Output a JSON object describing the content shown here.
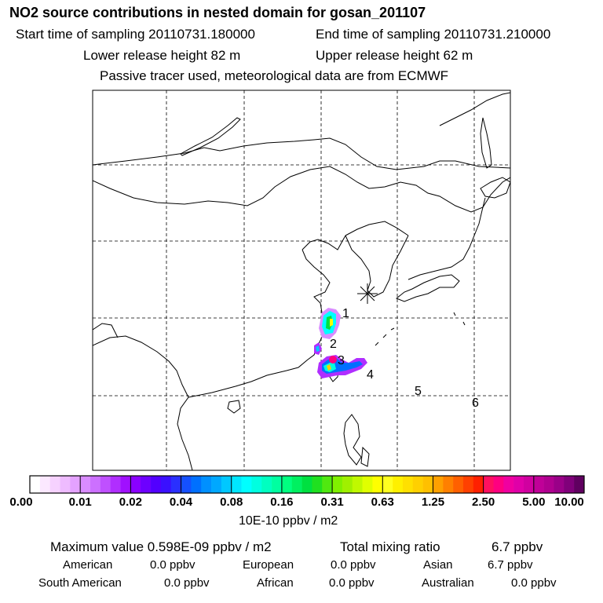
{
  "header": {
    "title": "NO2 source contributions in nested domain for gosan_201107",
    "start_time": "Start time of sampling 20110731.180000",
    "end_time": "End time of sampling 20110731.210000",
    "lower_release": "Lower release height   82 m",
    "upper_release": "Upper release height   62 m",
    "note": "Passive tracer used, meteorological data are from ECMWF"
  },
  "map": {
    "source_marker": "receptor-star",
    "region_labels": [
      "1",
      "2",
      "3",
      "4",
      "5",
      "6"
    ]
  },
  "colorbar": {
    "tick_labels": [
      "0.00",
      "0.01",
      "0.02",
      "0.04",
      "0.08",
      "0.16",
      "0.31",
      "0.63",
      "1.25",
      "2.50",
      "5.00",
      "10.00"
    ],
    "colors": [
      [
        "#ffffff",
        "#fbe8ff",
        "#f6d2ff",
        "#eebbff",
        "#e4a2ff"
      ],
      [
        "#d98cff",
        "#cc70ff",
        "#bf50ff",
        "#b02eff",
        "#a010ff"
      ],
      [
        "#8a00ff",
        "#6d00ff",
        "#5200ff",
        "#3a10ff",
        "#2a30ff"
      ],
      [
        "#1550ff",
        "#0070ff",
        "#0090ff",
        "#00a8ff",
        "#00c8ff"
      ],
      [
        "#00e6ff",
        "#00ffff",
        "#00ffe0",
        "#00ffc0",
        "#00ffa0"
      ],
      [
        "#00ff80",
        "#00f060",
        "#00e040",
        "#20e020",
        "#50e810"
      ],
      [
        "#80f000",
        "#a0f000",
        "#c0f800",
        "#e0ff00",
        "#ffff00"
      ],
      [
        "#ffff20",
        "#fff000",
        "#ffe000",
        "#ffd000",
        "#ffc000"
      ],
      [
        "#ffa000",
        "#ff8000",
        "#ff6000",
        "#ff4000",
        "#ff2000"
      ],
      [
        "#ff1060",
        "#ff0080",
        "#f000a0",
        "#e000a8",
        "#d000a0"
      ],
      [
        "#c00098",
        "#b00090",
        "#9a0088",
        "#80007a",
        "#600060"
      ]
    ],
    "units": "10E-10 ppbv / m2"
  },
  "summary": {
    "max_value": "Maximum value  0.598E-09 ppbv / m2",
    "total_mixing": "Total mixing ratio",
    "total_mixing_value": "6.7 ppbv",
    "rows": [
      [
        {
          "label": "American",
          "value": "0.0 ppbv"
        },
        {
          "label": "European",
          "value": "0.0 ppbv"
        },
        {
          "label": "Asian",
          "value": "6.7 ppbv"
        }
      ],
      [
        {
          "label": "South American",
          "value": "0.0 ppbv"
        },
        {
          "label": "African",
          "value": "0.0 ppbv"
        },
        {
          "label": "Australian",
          "value": "0.0 ppbv"
        }
      ]
    ]
  }
}
